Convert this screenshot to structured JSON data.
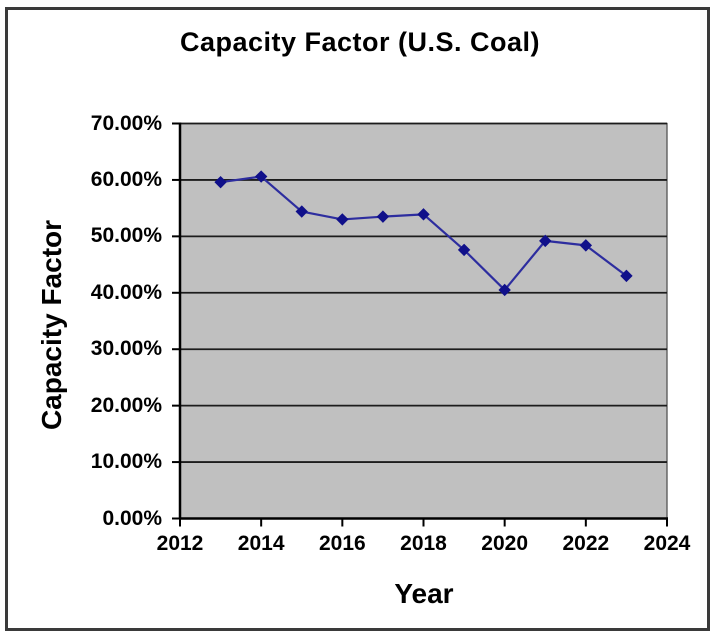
{
  "chart_data": {
    "type": "line",
    "title": "Capacity Factor (U.S. Coal)",
    "xlabel": "Year",
    "ylabel": "Capacity Factor",
    "series_name": "Capacity Factor",
    "x": [
      2013,
      2014,
      2015,
      2016,
      2017,
      2018,
      2019,
      2020,
      2021,
      2022,
      2023
    ],
    "values": [
      59.6,
      60.6,
      54.4,
      53.0,
      53.5,
      53.9,
      47.6,
      40.5,
      49.2,
      48.4,
      43.0
    ],
    "xlim": [
      2012,
      2024
    ],
    "ylim": [
      0,
      70
    ],
    "x_ticks": [
      2012,
      2014,
      2016,
      2018,
      2020,
      2022,
      2024
    ],
    "y_ticks": [
      0,
      10,
      20,
      30,
      40,
      50,
      60,
      70
    ],
    "y_tick_labels": [
      "0.00%",
      "10.00%",
      "20.00%",
      "30.00%",
      "40.00%",
      "50.00%",
      "60.00%",
      "70.00%"
    ],
    "grid": "horizontal",
    "legend": "none",
    "marker": "diamond",
    "colors": {
      "line": "#2d2d9f",
      "marker": "#10108a",
      "plot_bg": "#c0c0c0",
      "grid": "#1c1c1c",
      "axis": "#000000",
      "plot_border": "#555555",
      "frame_border": "#3a3a3a",
      "text": "#000000",
      "background": "#ffffff"
    }
  }
}
